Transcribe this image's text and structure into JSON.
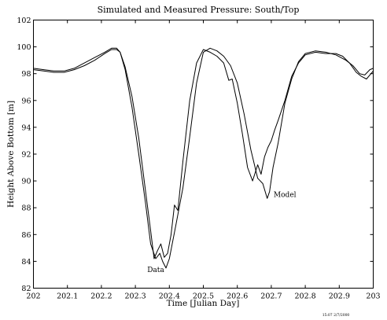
{
  "chart_data": {
    "type": "line",
    "title": "Simulated and Measured Pressure: South/Top",
    "xlabel": "Time [Julian Day]",
    "ylabel": "Height Above Bottom [m]",
    "xlim": [
      202,
      203
    ],
    "ylim": [
      82,
      102
    ],
    "x_ticks": [
      202,
      202.1,
      202.2,
      202.3,
      202.4,
      202.5,
      202.6,
      202.7,
      202.8,
      202.9,
      203
    ],
    "x_tick_labels": [
      "202",
      "202.1",
      "202.2",
      "202.3",
      "202.4",
      "202.5",
      "202.6",
      "202.7",
      "202.8",
      "202.9",
      "203"
    ],
    "y_ticks": [
      82,
      84,
      86,
      88,
      90,
      92,
      94,
      96,
      98,
      100,
      102
    ],
    "y_tick_labels": [
      "82",
      "84",
      "86",
      "88",
      "90",
      "92",
      "94",
      "96",
      "98",
      "100",
      "102"
    ],
    "grid": false,
    "annotations": [
      {
        "text": "Data",
        "x": 202.335,
        "y": 83.2
      },
      {
        "text": "Model",
        "x": 202.707,
        "y": 88.8
      }
    ],
    "stamp_text": "15:07 2/7/2000",
    "series": [
      {
        "name": "Data",
        "x": [
          202.0,
          202.03,
          202.06,
          202.09,
          202.12,
          202.15,
          202.18,
          202.21,
          202.23,
          202.245,
          202.255,
          202.27,
          202.29,
          202.31,
          202.33,
          202.345,
          202.355,
          202.365,
          202.375,
          202.385,
          202.395,
          202.405,
          202.415,
          202.425,
          202.44,
          202.46,
          202.48,
          202.5,
          202.52,
          202.54,
          202.56,
          202.575,
          202.585,
          202.6,
          202.615,
          202.63,
          202.645,
          202.66,
          202.67,
          202.68,
          202.69,
          202.7,
          202.71,
          202.72,
          202.74,
          202.76,
          202.78,
          202.8,
          202.83,
          202.86,
          202.89,
          202.91,
          202.93,
          202.95,
          202.965,
          202.98,
          203.0
        ],
        "y": [
          98.3,
          98.2,
          98.1,
          98.1,
          98.3,
          98.6,
          99.0,
          99.5,
          99.8,
          99.8,
          99.6,
          98.5,
          96.3,
          93.2,
          89.2,
          86.3,
          84.2,
          84.8,
          85.3,
          84.3,
          84.6,
          86.0,
          88.2,
          87.8,
          91.5,
          96.0,
          98.8,
          99.8,
          99.6,
          99.3,
          98.8,
          97.5,
          97.6,
          95.8,
          93.5,
          91.0,
          90.0,
          91.2,
          90.5,
          91.8,
          92.5,
          93.0,
          93.8,
          94.5,
          96.0,
          97.8,
          98.8,
          99.4,
          99.6,
          99.5,
          99.5,
          99.3,
          98.8,
          98.1,
          97.8,
          97.6,
          98.2
        ]
      },
      {
        "name": "Model",
        "x": [
          202.0,
          202.03,
          202.06,
          202.09,
          202.12,
          202.15,
          202.18,
          202.21,
          202.23,
          202.245,
          202.255,
          202.27,
          202.29,
          202.31,
          202.33,
          202.345,
          202.36,
          202.372,
          202.38,
          202.39,
          202.4,
          202.41,
          202.42,
          202.44,
          202.46,
          202.48,
          202.5,
          202.52,
          202.54,
          202.56,
          202.58,
          202.6,
          202.62,
          202.64,
          202.66,
          202.675,
          202.688,
          202.695,
          202.705,
          202.72,
          202.74,
          202.76,
          202.78,
          202.8,
          202.83,
          202.86,
          202.89,
          202.92,
          202.94,
          202.96,
          202.975,
          202.99,
          203.0
        ],
        "y": [
          98.4,
          98.3,
          98.2,
          98.2,
          98.4,
          98.8,
          99.2,
          99.6,
          99.9,
          99.9,
          99.6,
          98.3,
          95.5,
          92.0,
          88.3,
          85.3,
          84.2,
          84.6,
          84.0,
          83.5,
          84.2,
          85.5,
          86.8,
          89.5,
          93.3,
          97.3,
          99.6,
          99.9,
          99.7,
          99.3,
          98.6,
          97.3,
          95.0,
          92.3,
          90.2,
          89.8,
          88.7,
          89.2,
          91.0,
          92.8,
          95.8,
          97.6,
          98.9,
          99.5,
          99.7,
          99.6,
          99.4,
          99.0,
          98.6,
          98.0,
          97.9,
          98.3,
          98.4
        ]
      }
    ]
  }
}
